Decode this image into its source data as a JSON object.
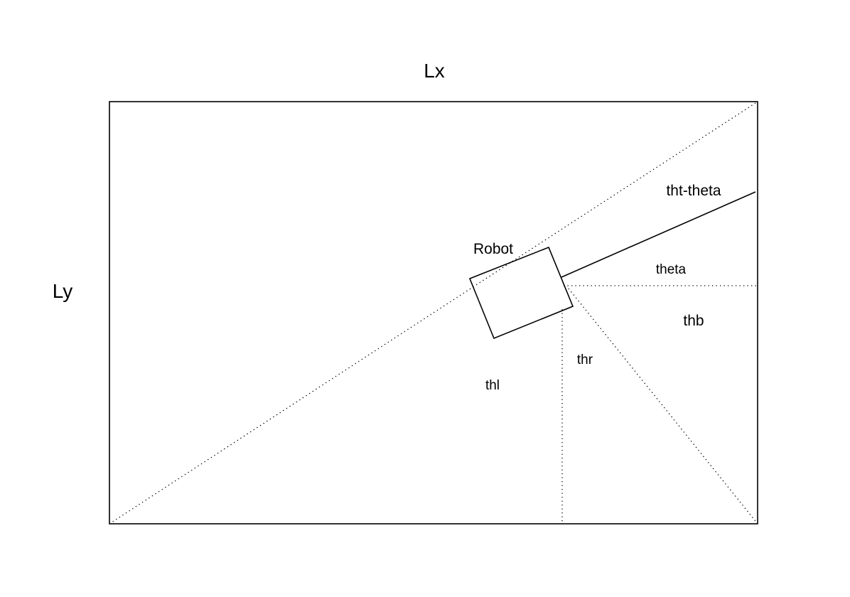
{
  "labels": {
    "top_axis": "Lx",
    "left_axis": "Ly",
    "robot": "Robot",
    "angle_tht_theta": "tht-theta",
    "angle_theta": "theta",
    "angle_thb": "thb",
    "angle_thr": "thr",
    "angle_thl": "thl"
  }
}
